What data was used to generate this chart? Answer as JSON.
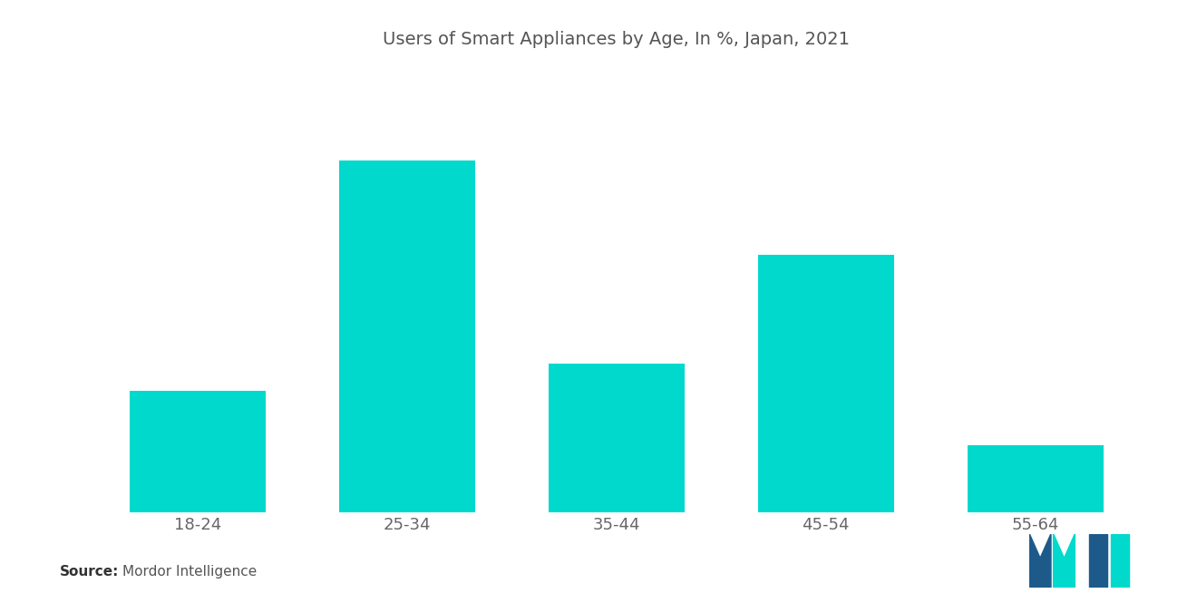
{
  "title": "Users of Smart Appliances by Age, In %, Japan, 2021",
  "categories": [
    "18-24",
    "25-34",
    "35-44",
    "45-54",
    "55-64"
  ],
  "values": [
    18,
    52,
    22,
    38,
    10
  ],
  "bar_color": "#00D9CC",
  "background_color": "#ffffff",
  "title_fontsize": 14,
  "title_color": "#555555",
  "tick_color": "#666666",
  "tick_fontsize": 13,
  "source_label": "Source:",
  "source_detail": "Mordor Intelligence",
  "source_fontsize": 11,
  "ylim": [
    0,
    65
  ],
  "bar_width": 0.65,
  "logo_dark": "#1d5a8a",
  "logo_teal": "#00D9CC"
}
